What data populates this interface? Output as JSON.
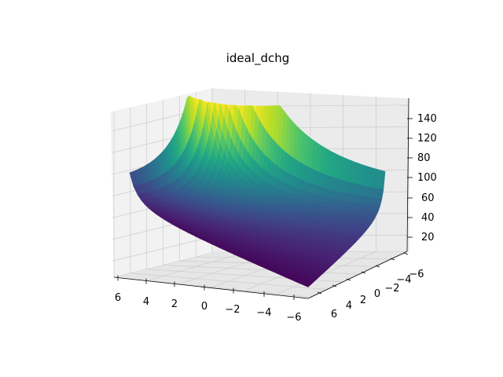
{
  "chart_data": {
    "type": "surface3d",
    "title": "ideal_dchg",
    "colormap": "viridis",
    "x_axis": {
      "label": "",
      "ticks": [
        6,
        4,
        2,
        0,
        -2,
        -4,
        -6
      ],
      "tick_labels": [
        "6",
        "4",
        "2",
        "0",
        "−2",
        "−4",
        "−6"
      ],
      "range": [
        -6.5,
        6.5
      ]
    },
    "y_axis": {
      "label": "",
      "ticks": [
        6,
        4,
        2,
        0,
        -2,
        -4,
        -6
      ],
      "tick_labels": [
        "6",
        "4",
        "2",
        "0",
        "−2",
        "−4",
        "−6"
      ],
      "range": [
        -6.5,
        6.5
      ]
    },
    "z_axis": {
      "label": "",
      "ticks": [
        20,
        40,
        60,
        80,
        100,
        120,
        140
      ],
      "tick_labels": [
        "20",
        "40",
        "60",
        "80",
        "100",
        "120",
        "140"
      ],
      "range": [
        5,
        150
      ]
    },
    "surface_values_z_range": [
      5,
      148
    ],
    "grid": true
  }
}
